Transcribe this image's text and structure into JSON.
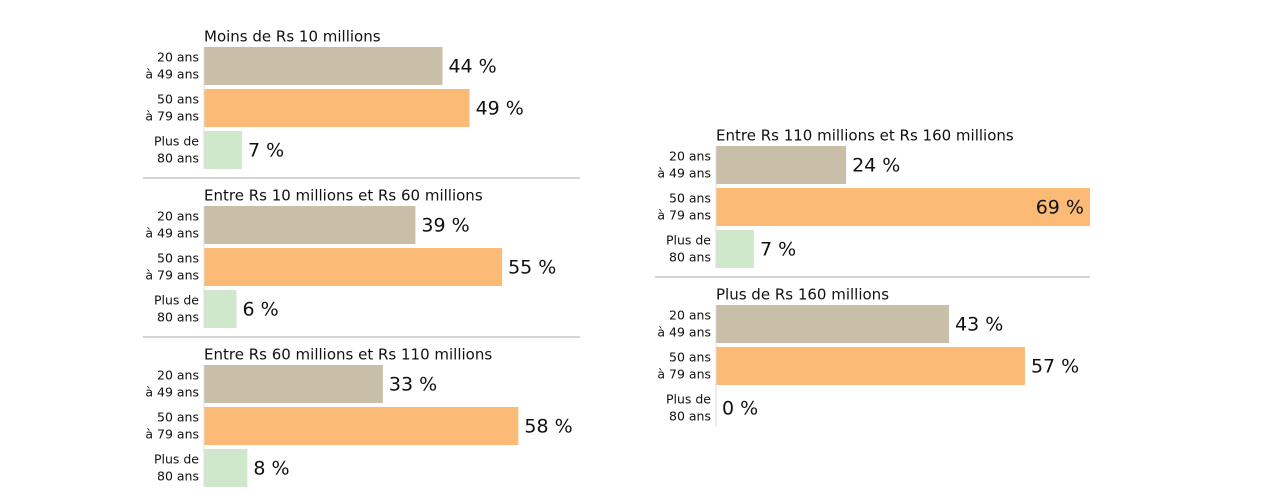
{
  "chart_data": [
    {
      "type": "bar",
      "title": "Moins de Rs 10 millions",
      "categories": [
        [
          "20 ans",
          "à 49 ans"
        ],
        [
          "50 ans",
          "à 79 ans"
        ],
        [
          "Plus de",
          "80 ans"
        ]
      ],
      "values": [
        44,
        49,
        7
      ],
      "value_labels": [
        "44 %",
        "49 %",
        "7 %"
      ],
      "colors": [
        "#c9bfa9",
        "#fbbb77",
        "#cfe8cb"
      ]
    },
    {
      "type": "bar",
      "title": "Entre Rs 10 millions et Rs 60 millions",
      "categories": [
        [
          "20 ans",
          "à 49 ans"
        ],
        [
          "50 ans",
          "à 79 ans"
        ],
        [
          "Plus de",
          "80 ans"
        ]
      ],
      "values": [
        39,
        55,
        6
      ],
      "value_labels": [
        "39 %",
        "55 %",
        "6 %"
      ],
      "colors": [
        "#c9bfa9",
        "#fbbb77",
        "#cfe8cb"
      ]
    },
    {
      "type": "bar",
      "title": "Entre Rs 60 millions et Rs 110 millions",
      "categories": [
        [
          "20 ans",
          "à 49 ans"
        ],
        [
          "50 ans",
          "à 79 ans"
        ],
        [
          "Plus de",
          "80 ans"
        ]
      ],
      "values": [
        33,
        58,
        8
      ],
      "value_labels": [
        "33 %",
        "58 %",
        "8 %"
      ],
      "colors": [
        "#c9bfa9",
        "#fbbb77",
        "#cfe8cb"
      ]
    },
    {
      "type": "bar",
      "title": "Entre Rs 110 millions et Rs 160 millions",
      "categories": [
        [
          "20 ans",
          "à 49 ans"
        ],
        [
          "50 ans",
          "à 79 ans"
        ],
        [
          "Plus de",
          "80 ans"
        ]
      ],
      "values": [
        24,
        69,
        7
      ],
      "value_labels": [
        "24 %",
        "69 %",
        "7 %"
      ],
      "colors": [
        "#c9bfa9",
        "#fbbb77",
        "#cfe8cb"
      ]
    },
    {
      "type": "bar",
      "title": "Plus de Rs 160 millions",
      "categories": [
        [
          "20 ans",
          "à 49 ans"
        ],
        [
          "50 ans",
          "à 79 ans"
        ],
        [
          "Plus de",
          "80 ans"
        ]
      ],
      "values": [
        43,
        57,
        0
      ],
      "value_labels": [
        "43 %",
        "57 %",
        "0 %"
      ],
      "colors": [
        "#c9bfa9",
        "#fbbb77",
        "#cfe8cb"
      ]
    }
  ]
}
